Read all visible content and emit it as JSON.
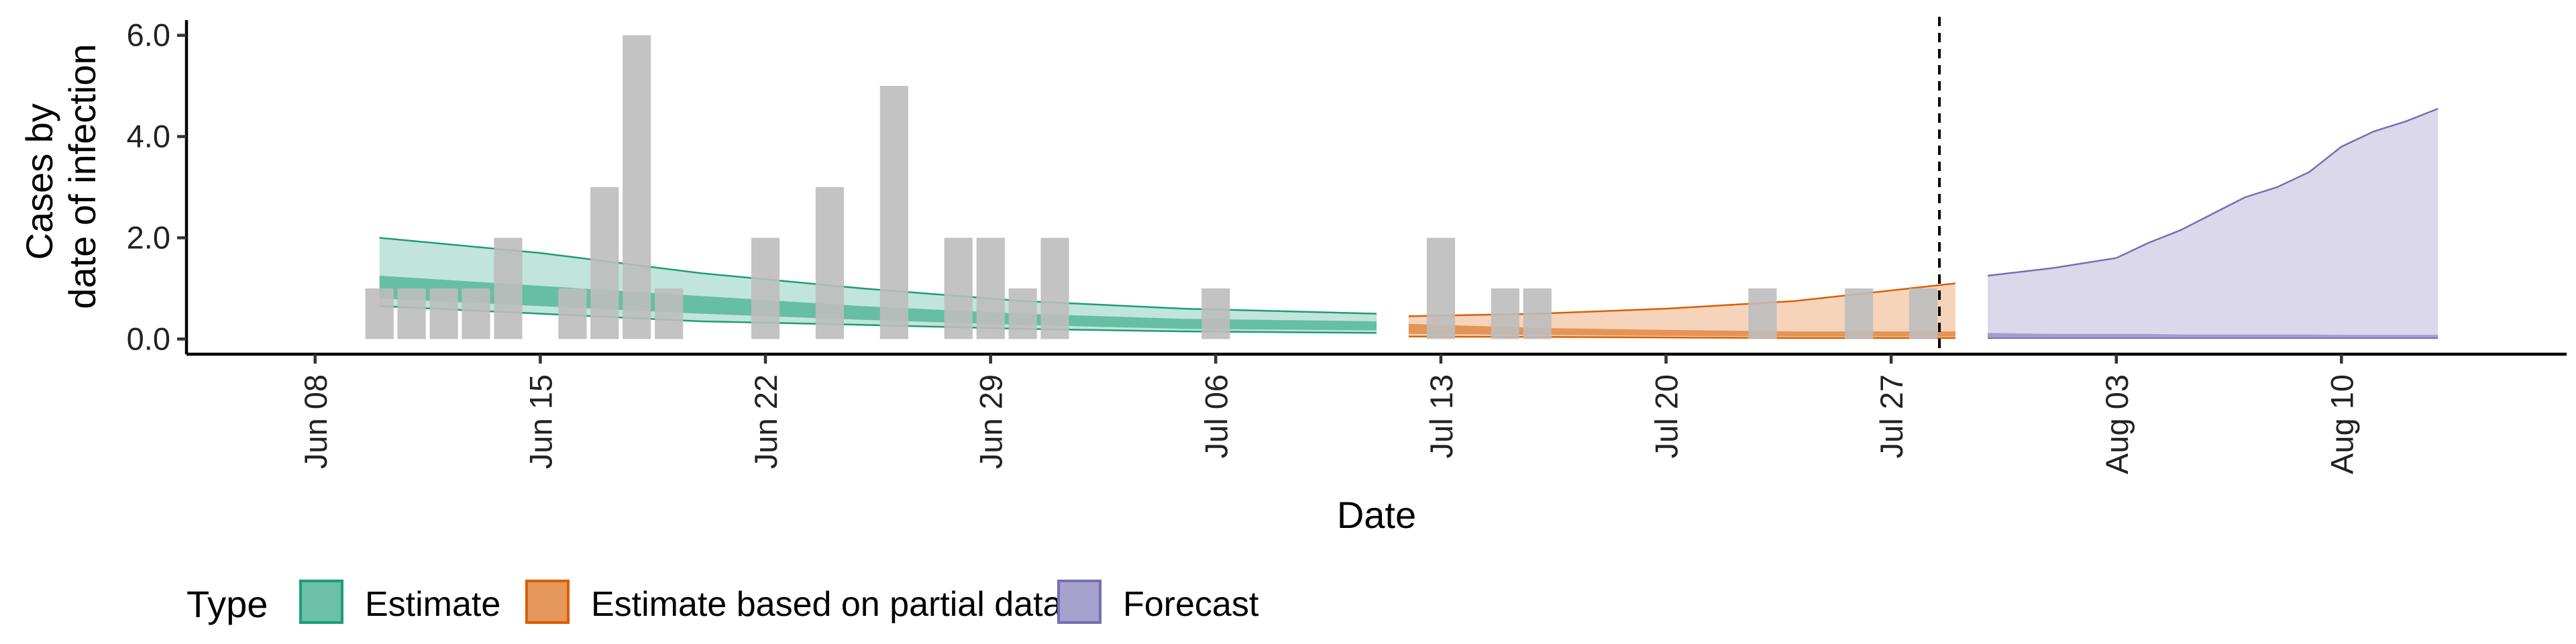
{
  "chart_data": {
    "type": "area",
    "title": "",
    "xlabel": "Date",
    "ylabel_lines": [
      "Cases by",
      "date of infection"
    ],
    "ylim": [
      -0.3,
      6.3
    ],
    "y_ticks": [
      {
        "value": 0,
        "label": "0.0"
      },
      {
        "value": 2,
        "label": "2.0"
      },
      {
        "value": 4,
        "label": "4.0"
      },
      {
        "value": 6,
        "label": "6.0"
      }
    ],
    "x_range": [
      "2020-06-04",
      "2020-08-17"
    ],
    "x_ticks": [
      {
        "date": "2020-06-08",
        "label": "Jun 08"
      },
      {
        "date": "2020-06-15",
        "label": "Jun 15"
      },
      {
        "date": "2020-06-22",
        "label": "Jun 22"
      },
      {
        "date": "2020-06-29",
        "label": "Jun 29"
      },
      {
        "date": "2020-07-06",
        "label": "Jul 06"
      },
      {
        "date": "2020-07-13",
        "label": "Jul 13"
      },
      {
        "date": "2020-07-20",
        "label": "Jul 20"
      },
      {
        "date": "2020-07-27",
        "label": "Jul 27"
      },
      {
        "date": "2020-08-03",
        "label": "Aug 03"
      },
      {
        "date": "2020-08-10",
        "label": "Aug 10"
      }
    ],
    "forecast_start_line": "2020-07-29",
    "grid": false,
    "colors": {
      "estimate": "#1b9e77",
      "partial": "#d95f02",
      "forecast": "#7570b3",
      "bars": "#bdbdbd"
    },
    "legend": {
      "title": "Type",
      "position": "bottom",
      "items": [
        {
          "key": "estimate",
          "label": "Estimate"
        },
        {
          "key": "partial",
          "label": "Estimate based on partial data"
        },
        {
          "key": "forecast",
          "label": "Forecast"
        }
      ]
    },
    "bars": [
      {
        "date": "2020-06-10",
        "value": 1
      },
      {
        "date": "2020-06-11",
        "value": 1
      },
      {
        "date": "2020-06-12",
        "value": 1
      },
      {
        "date": "2020-06-13",
        "value": 1
      },
      {
        "date": "2020-06-14",
        "value": 2
      },
      {
        "date": "2020-06-16",
        "value": 1
      },
      {
        "date": "2020-06-17",
        "value": 3
      },
      {
        "date": "2020-06-18",
        "value": 6
      },
      {
        "date": "2020-06-19",
        "value": 1
      },
      {
        "date": "2020-06-22",
        "value": 2
      },
      {
        "date": "2020-06-24",
        "value": 3
      },
      {
        "date": "2020-06-26",
        "value": 5
      },
      {
        "date": "2020-06-28",
        "value": 2
      },
      {
        "date": "2020-06-29",
        "value": 2
      },
      {
        "date": "2020-06-30",
        "value": 1
      },
      {
        "date": "2020-07-01",
        "value": 2
      },
      {
        "date": "2020-07-06",
        "value": 1
      },
      {
        "date": "2020-07-13",
        "value": 2
      },
      {
        "date": "2020-07-15",
        "value": 1
      },
      {
        "date": "2020-07-16",
        "value": 1
      },
      {
        "date": "2020-07-23",
        "value": 1
      },
      {
        "date": "2020-07-26",
        "value": 1
      },
      {
        "date": "2020-07-28",
        "value": 1
      }
    ],
    "series": [
      {
        "key": "estimate",
        "name": "Estimate",
        "dates": [
          "2020-06-10",
          "2020-06-15",
          "2020-06-20",
          "2020-06-25",
          "2020-06-30",
          "2020-07-05",
          "2020-07-11"
        ],
        "outer_upper": [
          2.0,
          1.7,
          1.3,
          1.0,
          0.75,
          0.6,
          0.5
        ],
        "outer_lower": [
          0.65,
          0.5,
          0.35,
          0.28,
          0.2,
          0.15,
          0.12
        ],
        "inner_upper": [
          1.25,
          1.05,
          0.85,
          0.65,
          0.5,
          0.4,
          0.35
        ],
        "inner_lower": [
          0.8,
          0.65,
          0.5,
          0.38,
          0.28,
          0.2,
          0.17
        ]
      },
      {
        "key": "partial",
        "name": "Estimate based on partial data",
        "dates": [
          "2020-07-12",
          "2020-07-16",
          "2020-07-20",
          "2020-07-24",
          "2020-07-29"
        ],
        "outer_upper": [
          0.45,
          0.5,
          0.6,
          0.75,
          1.1
        ],
        "outer_lower": [
          0.05,
          0.04,
          0.03,
          0.02,
          0.02
        ],
        "inner_upper": [
          0.3,
          0.22,
          0.18,
          0.15,
          0.15
        ],
        "inner_lower": [
          0.1,
          0.08,
          0.06,
          0.05,
          0.05
        ]
      },
      {
        "key": "forecast",
        "name": "Forecast",
        "dates": [
          "2020-07-30",
          "2020-08-01",
          "2020-08-03",
          "2020-08-04",
          "2020-08-05",
          "2020-08-07",
          "2020-08-08",
          "2020-08-09",
          "2020-08-10",
          "2020-08-11",
          "2020-08-12",
          "2020-08-13"
        ],
        "outer_upper": [
          1.25,
          1.4,
          1.6,
          1.9,
          2.15,
          2.8,
          3.0,
          3.3,
          3.8,
          4.1,
          4.3,
          4.55
        ],
        "outer_lower": [
          0.02,
          0.02,
          0.02,
          0.02,
          0.02,
          0.02,
          0.02,
          0.02,
          0.02,
          0.02,
          0.02,
          0.02
        ],
        "inner_upper": [
          0.12,
          0.1,
          0.1,
          0.1,
          0.09,
          0.09,
          0.09,
          0.09,
          0.08,
          0.08,
          0.08,
          0.08
        ],
        "inner_lower": [
          0.04,
          0.04,
          0.04,
          0.04,
          0.04,
          0.04,
          0.04,
          0.04,
          0.04,
          0.04,
          0.04,
          0.04
        ]
      }
    ]
  }
}
